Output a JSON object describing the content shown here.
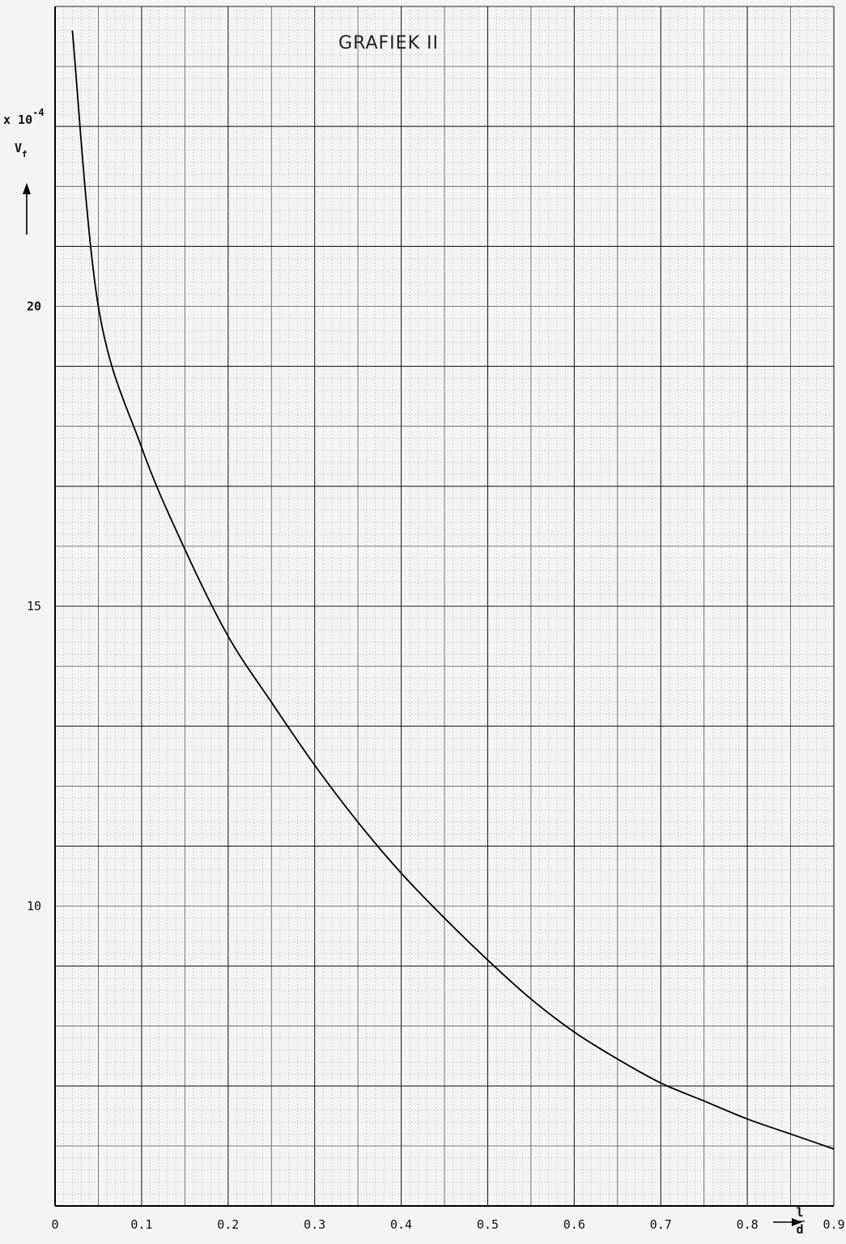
{
  "chart_data": {
    "type": "line",
    "title": "GRAFIEK II",
    "ylabel": "Vf",
    "yunit": "x 10^-4",
    "yunit_base": "x 10",
    "yunit_exp": "-4",
    "xlabel": "l/d",
    "xlabel_num": "l",
    "xlabel_den": "d",
    "xlim": [
      0,
      0.9
    ],
    "ylim": [
      5,
      25
    ],
    "xticks": [
      "0",
      "0.1",
      "0.2",
      "0.3",
      "0.4",
      "0.5",
      "0.6",
      "0.7",
      "0.8",
      "0.9"
    ],
    "yticks": [
      {
        "value": 20,
        "label": "20"
      },
      {
        "value": 15,
        "label": "15"
      },
      {
        "value": 10,
        "label": "10"
      }
    ],
    "grid": true,
    "series": [
      {
        "x": [
          0.02,
          0.05,
          0.1,
          0.15,
          0.2,
          0.25,
          0.3,
          0.35,
          0.4,
          0.45,
          0.5,
          0.55,
          0.6,
          0.65,
          0.7,
          0.75,
          0.8,
          0.85,
          0.9
        ],
        "y": [
          24.6,
          20.0,
          17.65,
          15.95,
          14.5,
          13.4,
          12.35,
          11.4,
          10.55,
          9.8,
          9.1,
          8.45,
          7.9,
          7.45,
          7.05,
          6.75,
          6.45,
          6.2,
          5.95
        ]
      }
    ]
  }
}
